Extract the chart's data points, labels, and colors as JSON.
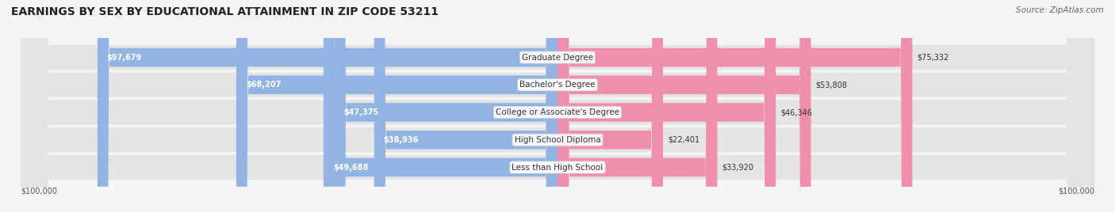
{
  "title": "EARNINGS BY SEX BY EDUCATIONAL ATTAINMENT IN ZIP CODE 53211",
  "source": "Source: ZipAtlas.com",
  "categories": [
    "Less than High School",
    "High School Diploma",
    "College or Associate's Degree",
    "Bachelor's Degree",
    "Graduate Degree"
  ],
  "male_values": [
    49688,
    38936,
    47375,
    68207,
    97679
  ],
  "female_values": [
    33920,
    22401,
    46346,
    53808,
    75332
  ],
  "max_value": 100000,
  "male_color": "#92b4e3",
  "female_color": "#f08fac",
  "bg_color": "#f5f5f5",
  "row_bg_color": "#e4e4e4",
  "title_fontsize": 10,
  "source_fontsize": 7.5,
  "label_fontsize": 7.5,
  "bar_label_fontsize": 7,
  "legend_fontsize": 7.5,
  "axis_label_fontsize": 7
}
